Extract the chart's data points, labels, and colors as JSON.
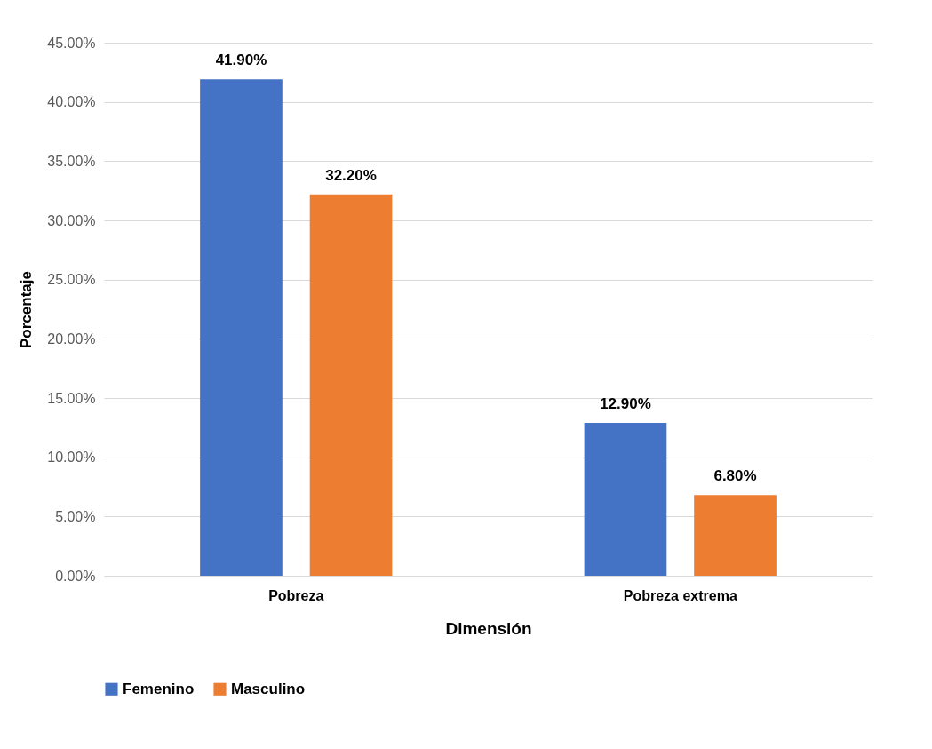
{
  "chart_data": {
    "type": "bar",
    "xlabel": "Dimensión",
    "ylabel": "Porcentaje",
    "categories": [
      "Pobreza",
      "Pobreza extrema"
    ],
    "series": [
      {
        "name": "Femenino",
        "color": "#4472c4",
        "values": [
          41.9,
          12.9
        ],
        "value_labels": [
          "41.90%",
          "12.90%"
        ]
      },
      {
        "name": "Masculino",
        "color": "#ed7d31",
        "values": [
          32.2,
          6.8
        ],
        "value_labels": [
          "32.20%",
          "6.80%"
        ]
      }
    ],
    "ylim": [
      0,
      45
    ],
    "yticks": [
      {
        "value": 0,
        "label": "0.00%"
      },
      {
        "value": 5,
        "label": "5.00%"
      },
      {
        "value": 10,
        "label": "10.00%"
      },
      {
        "value": 15,
        "label": "15.00%"
      },
      {
        "value": 20,
        "label": "20.00%"
      },
      {
        "value": 25,
        "label": "25.00%"
      },
      {
        "value": 30,
        "label": "30.00%"
      },
      {
        "value": 35,
        "label": "35.00%"
      },
      {
        "value": 40,
        "label": "40.00%"
      },
      {
        "value": 45,
        "label": "45.00%"
      }
    ],
    "grid": "y",
    "legend": "bottom"
  }
}
